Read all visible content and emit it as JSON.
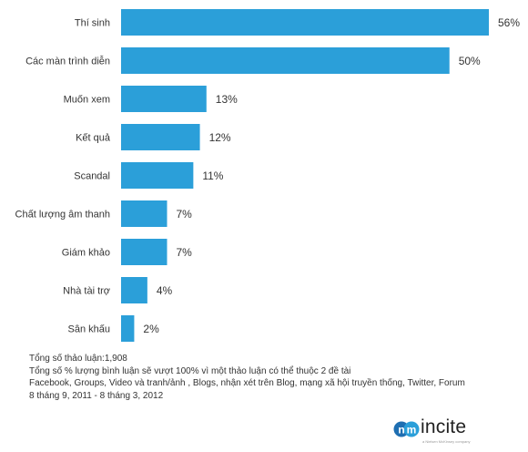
{
  "chart_data": {
    "type": "bar",
    "orientation": "horizontal",
    "categories": [
      "Thí sinh",
      "Các màn trình diễn",
      "Muốn xem",
      "Kết quả",
      "Scandal",
      "Chất lượng âm thanh",
      "Giám khảo",
      "Nhà tài trợ",
      "Sân khấu"
    ],
    "values": [
      56,
      50,
      13,
      12,
      11,
      7,
      7,
      4,
      2
    ],
    "value_labels": [
      "56%",
      "50%",
      "13%",
      "12%",
      "11%",
      "7%",
      "7%",
      "4%",
      "2%"
    ],
    "bar_color": "#2b9fd9",
    "xlim": [
      0,
      56
    ],
    "grid": false,
    "legend": "none"
  },
  "footnotes": {
    "total": "Tổng số thảo luận:1,908",
    "note": "Tổng số % lượng bình luận sẽ vượt 100% vì một thảo luận có thể thuộc 2 đề tài",
    "sources": "Facebook, Groups, Video và tranh/ảnh , Blogs, nhận xét trên Blog, mạng xã hội truyền thống, Twitter, Forum",
    "period": "8 tháng 9, 2011 - 8 tháng 3, 2012"
  },
  "logo": {
    "text": "incite",
    "tagline": "a Nielsen McKinsey company",
    "icon": "incite-logo-icon",
    "colors": [
      "#1f6fb2",
      "#2b9fd9"
    ]
  }
}
